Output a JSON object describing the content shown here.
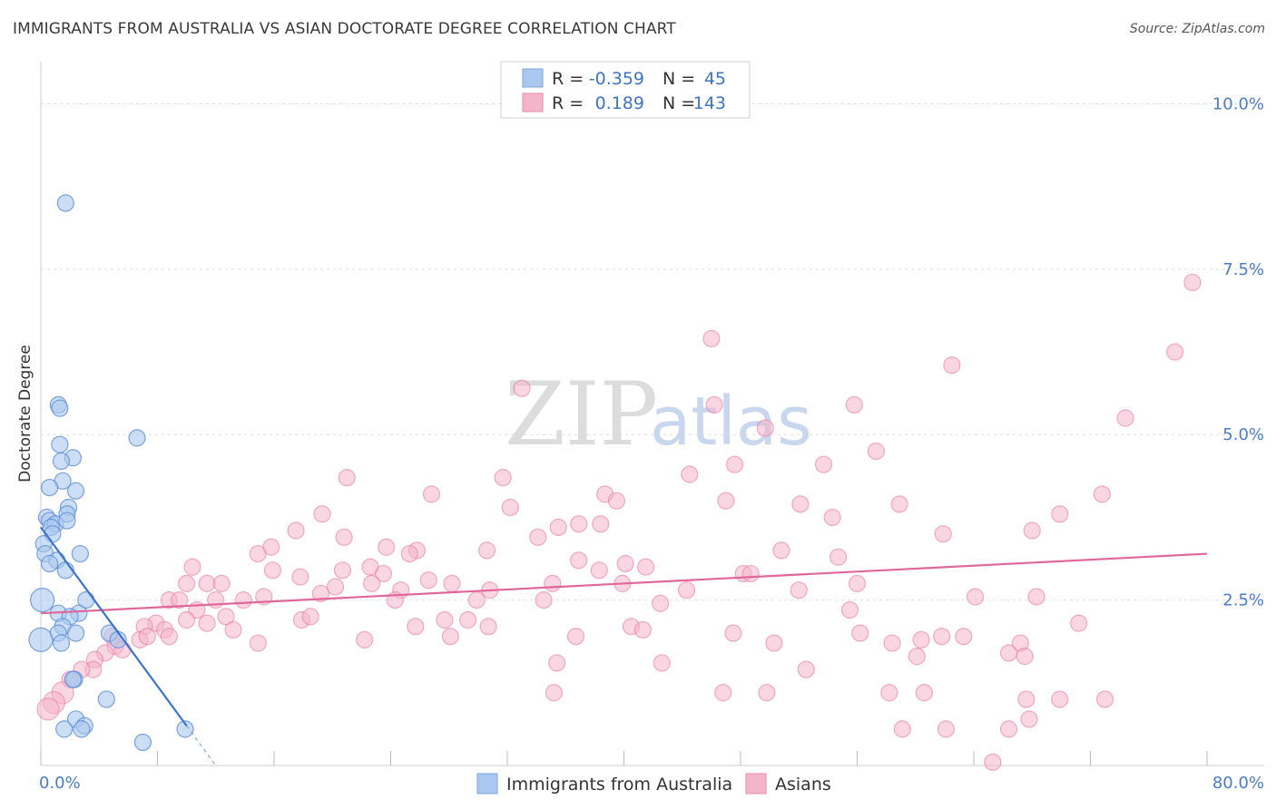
{
  "header": {
    "title": "IMMIGRANTS FROM AUSTRALIA VS ASIAN DOCTORATE DEGREE CORRELATION CHART",
    "source": "Source: ZipAtlas.com"
  },
  "colors": {
    "blue": "#5b8fd6",
    "blue_fill": "#aac8ef",
    "pink": "#e8709a",
    "pink_fill": "#f4b5ca",
    "tick_text": "#4a7cc9"
  },
  "watermark": {
    "zip": "ZIP",
    "atlas": "atlas"
  },
  "legend": {
    "rows": [
      {
        "r_label": "R =",
        "r_value": "-0.359",
        "n_label": "N =",
        "n_value": "45"
      },
      {
        "r_label": "R =",
        "r_value": "0.189",
        "n_label": "N =",
        "n_value": "143"
      }
    ]
  },
  "bottom_legend": [
    {
      "label": "Immigrants from Australia"
    },
    {
      "label": "Asians"
    }
  ],
  "chart_data": {
    "type": "scatter",
    "title": "IMMIGRANTS FROM AUSTRALIA VS ASIAN DOCTORATE DEGREE CORRELATION CHART",
    "xlabel": "",
    "ylabel": "Doctorate Degree",
    "xlim": [
      0,
      80
    ],
    "ylim": [
      0,
      10.5
    ],
    "x_tick_labels": [
      "0.0%",
      "80.0%"
    ],
    "y_ticks": [
      2.5,
      5.0,
      7.5,
      10.0
    ],
    "y_tick_labels": [
      "2.5%",
      "5.0%",
      "7.5%",
      "10.0%"
    ],
    "series": [
      {
        "name": "Immigrants from Australia",
        "R": -0.359,
        "N": 45,
        "trend": {
          "x0": 0,
          "y0": 3.6,
          "x1": 10,
          "y1": 0.6,
          "dash_to_x": 12,
          "dash_to_y": 0
        },
        "points": [
          [
            1.7,
            8.5
          ],
          [
            1.2,
            5.45
          ],
          [
            1.3,
            5.4
          ],
          [
            6.6,
            4.95
          ],
          [
            1.3,
            4.85
          ],
          [
            2.2,
            4.65
          ],
          [
            1.4,
            4.6
          ],
          [
            1.5,
            4.3
          ],
          [
            2.4,
            4.15
          ],
          [
            0.6,
            4.2
          ],
          [
            1.9,
            3.9
          ],
          [
            1.8,
            3.8
          ],
          [
            0.4,
            3.75
          ],
          [
            0.6,
            3.7
          ],
          [
            1.0,
            3.65
          ],
          [
            1.8,
            3.7
          ],
          [
            0.7,
            3.6
          ],
          [
            0.8,
            3.5
          ],
          [
            0.2,
            3.35
          ],
          [
            2.7,
            3.2
          ],
          [
            0.3,
            3.2
          ],
          [
            1.1,
            3.1
          ],
          [
            0.6,
            3.05
          ],
          [
            1.7,
            2.95
          ],
          [
            0.1,
            2.5
          ],
          [
            3.1,
            2.5
          ],
          [
            2.6,
            2.3
          ],
          [
            1.2,
            2.3
          ],
          [
            2.0,
            2.25
          ],
          [
            1.5,
            2.1
          ],
          [
            4.7,
            2.0
          ],
          [
            1.2,
            2.0
          ],
          [
            2.4,
            2.0
          ],
          [
            0.0,
            1.9
          ],
          [
            1.4,
            1.85
          ],
          [
            5.3,
            1.9
          ],
          [
            2.3,
            1.3
          ],
          [
            2.2,
            1.3
          ],
          [
            4.5,
            1.0
          ],
          [
            2.4,
            0.7
          ],
          [
            1.6,
            0.55
          ],
          [
            3.0,
            0.6
          ],
          [
            2.8,
            0.55
          ],
          [
            9.9,
            0.55
          ],
          [
            7.0,
            0.35
          ]
        ]
      },
      {
        "name": "Asians",
        "R": 0.189,
        "N": 143,
        "trend": {
          "x0": 0,
          "y0": 2.3,
          "x1": 80,
          "y1": 3.2
        },
        "points": [
          [
            79.0,
            7.3
          ],
          [
            46.0,
            6.45
          ],
          [
            77.8,
            6.25
          ],
          [
            62.5,
            6.05
          ],
          [
            33.0,
            5.7
          ],
          [
            46.2,
            5.45
          ],
          [
            55.8,
            5.45
          ],
          [
            74.4,
            5.25
          ],
          [
            49.7,
            5.1
          ],
          [
            57.3,
            4.75
          ],
          [
            47.6,
            4.55
          ],
          [
            53.7,
            4.55
          ],
          [
            21.0,
            4.35
          ],
          [
            31.7,
            4.35
          ],
          [
            44.5,
            4.4
          ],
          [
            26.8,
            4.1
          ],
          [
            38.7,
            4.1
          ],
          [
            72.8,
            4.1
          ],
          [
            39.5,
            4.0
          ],
          [
            47.0,
            4.0
          ],
          [
            52.1,
            3.95
          ],
          [
            58.9,
            3.95
          ],
          [
            32.2,
            3.9
          ],
          [
            19.3,
            3.8
          ],
          [
            54.3,
            3.75
          ],
          [
            35.5,
            3.6
          ],
          [
            36.9,
            3.65
          ],
          [
            38.4,
            3.65
          ],
          [
            69.9,
            3.8
          ],
          [
            17.5,
            3.55
          ],
          [
            20.8,
            3.45
          ],
          [
            34.1,
            3.45
          ],
          [
            61.9,
            3.5
          ],
          [
            68.0,
            3.55
          ],
          [
            15.8,
            3.3
          ],
          [
            14.9,
            3.2
          ],
          [
            23.7,
            3.3
          ],
          [
            25.8,
            3.25
          ],
          [
            30.6,
            3.25
          ],
          [
            25.3,
            3.2
          ],
          [
            50.8,
            3.25
          ],
          [
            36.9,
            3.1
          ],
          [
            40.1,
            3.05
          ],
          [
            41.5,
            3.0
          ],
          [
            54.7,
            3.15
          ],
          [
            10.4,
            3.0
          ],
          [
            22.6,
            3.0
          ],
          [
            15.9,
            2.95
          ],
          [
            20.7,
            2.95
          ],
          [
            23.5,
            2.9
          ],
          [
            17.8,
            2.85
          ],
          [
            48.2,
            2.9
          ],
          [
            48.7,
            2.9
          ],
          [
            38.3,
            2.95
          ],
          [
            26.6,
            2.8
          ],
          [
            10.0,
            2.75
          ],
          [
            11.4,
            2.75
          ],
          [
            22.7,
            2.75
          ],
          [
            28.2,
            2.75
          ],
          [
            35.1,
            2.75
          ],
          [
            39.9,
            2.75
          ],
          [
            56.0,
            2.75
          ],
          [
            12.4,
            2.75
          ],
          [
            19.2,
            2.6
          ],
          [
            20.2,
            2.7
          ],
          [
            24.7,
            2.65
          ],
          [
            30.8,
            2.65
          ],
          [
            44.3,
            2.65
          ],
          [
            52.0,
            2.65
          ],
          [
            15.3,
            2.55
          ],
          [
            24.3,
            2.5
          ],
          [
            29.9,
            2.5
          ],
          [
            34.5,
            2.5
          ],
          [
            42.5,
            2.45
          ],
          [
            64.1,
            2.55
          ],
          [
            68.3,
            2.55
          ],
          [
            8.8,
            2.5
          ],
          [
            9.5,
            2.5
          ],
          [
            12.0,
            2.5
          ],
          [
            13.9,
            2.5
          ],
          [
            10.7,
            2.35
          ],
          [
            12.7,
            2.25
          ],
          [
            17.9,
            2.2
          ],
          [
            27.7,
            2.2
          ],
          [
            29.3,
            2.2
          ],
          [
            25.7,
            2.1
          ],
          [
            40.5,
            2.1
          ],
          [
            41.3,
            2.05
          ],
          [
            55.5,
            2.35
          ],
          [
            71.2,
            2.15
          ],
          [
            7.9,
            2.15
          ],
          [
            7.1,
            2.1
          ],
          [
            10.0,
            2.2
          ],
          [
            11.4,
            2.15
          ],
          [
            13.2,
            2.05
          ],
          [
            8.5,
            2.05
          ],
          [
            18.5,
            2.25
          ],
          [
            30.7,
            2.1
          ],
          [
            47.5,
            2.0
          ],
          [
            56.2,
            2.0
          ],
          [
            58.4,
            1.85
          ],
          [
            60.4,
            1.9
          ],
          [
            61.8,
            1.95
          ],
          [
            63.3,
            1.95
          ],
          [
            67.2,
            1.85
          ],
          [
            4.9,
            1.95
          ],
          [
            6.8,
            1.9
          ],
          [
            7.3,
            1.95
          ],
          [
            8.8,
            1.95
          ],
          [
            14.9,
            1.85
          ],
          [
            22.2,
            1.9
          ],
          [
            28.1,
            1.95
          ],
          [
            36.7,
            1.95
          ],
          [
            50.3,
            1.85
          ],
          [
            60.1,
            1.65
          ],
          [
            66.4,
            1.7
          ],
          [
            67.5,
            1.65
          ],
          [
            5.1,
            1.8
          ],
          [
            5.6,
            1.75
          ],
          [
            4.4,
            1.7
          ],
          [
            3.7,
            1.6
          ],
          [
            3.6,
            1.45
          ],
          [
            35.4,
            1.55
          ],
          [
            42.6,
            1.55
          ],
          [
            52.5,
            1.45
          ],
          [
            2.8,
            1.45
          ],
          [
            2.0,
            1.3
          ],
          [
            1.5,
            1.1
          ],
          [
            35.2,
            1.1
          ],
          [
            46.8,
            1.1
          ],
          [
            49.8,
            1.1
          ],
          [
            58.2,
            1.1
          ],
          [
            60.6,
            1.1
          ],
          [
            67.6,
            1.0
          ],
          [
            69.9,
            1.0
          ],
          [
            73.0,
            1.0
          ],
          [
            0.9,
            0.95
          ],
          [
            0.5,
            0.85
          ],
          [
            62.1,
            0.55
          ],
          [
            66.4,
            0.55
          ],
          [
            67.8,
            0.7
          ],
          [
            59.1,
            0.55
          ],
          [
            65.3,
            0.05
          ]
        ]
      }
    ]
  }
}
